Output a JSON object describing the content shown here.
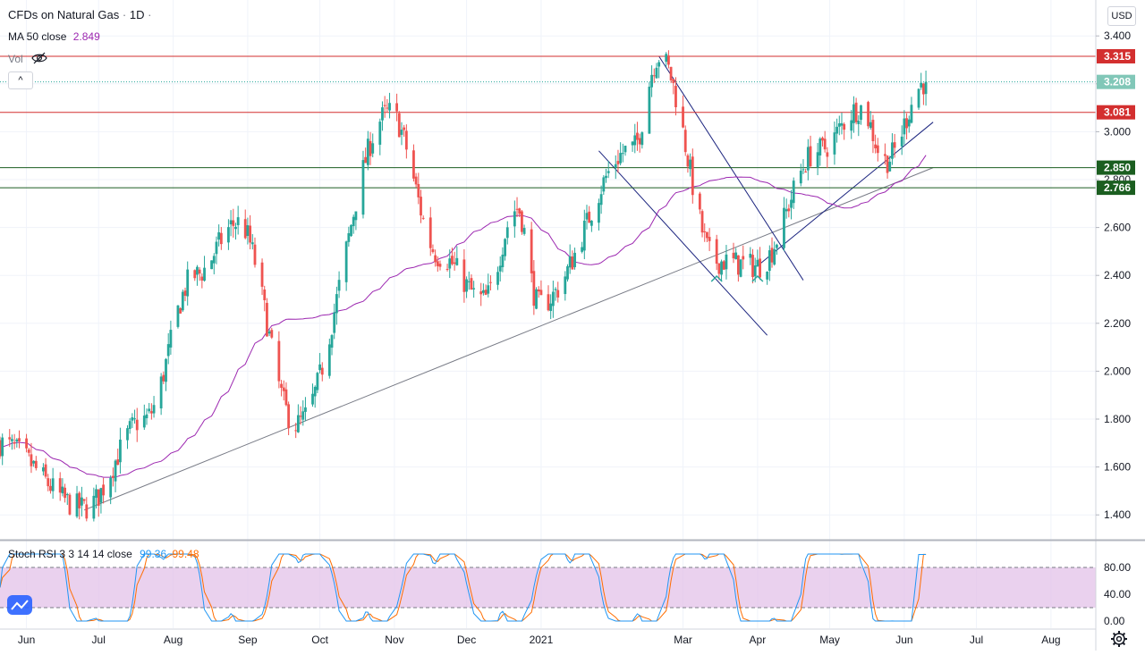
{
  "header": {
    "symbol": "CFDs on Natural Gas",
    "interval": "1D",
    "dot": "·",
    "ma_label": "MA 50 close",
    "ma_value": "2.849",
    "vol_label": "Vol",
    "currency": "USD",
    "collapse_glyph": "^"
  },
  "stoch": {
    "label": "Stoch RSI 3 3 14 14 close",
    "k_value": "99.36",
    "d_value": "99.48",
    "ticks": [
      "80.00",
      "40.00",
      "0.00"
    ],
    "upper": 80,
    "lower": 20
  },
  "colors": {
    "up": "#26a69a",
    "down": "#ef5350",
    "ma": "#9c27b0",
    "k": "#2196f3",
    "d": "#ff6d00",
    "res": "#d32f2f",
    "sup": "#1b5e20",
    "channel": "#1a237e",
    "trend": "#787b86"
  },
  "chart_data": {
    "type": "candlestick",
    "title": "CFDs on Natural Gas · 1D",
    "currency": "USD",
    "y_ticks": [
      "3.400",
      "3.200",
      "3.000",
      "2.800",
      "2.600",
      "2.400",
      "2.200",
      "2.000",
      "1.800",
      "1.600",
      "1.400"
    ],
    "y_range": [
      1.3,
      3.55
    ],
    "x_ticks": [
      "Jun",
      "Jul",
      "Aug",
      "Sep",
      "Oct",
      "Nov",
      "Dec",
      "2021",
      "Mar",
      "Apr",
      "May",
      "Jun",
      "Jul",
      "Aug"
    ],
    "price_labels": [
      {
        "value": 3.315,
        "text": "3.315",
        "kind": "resistance"
      },
      {
        "value": 3.208,
        "text": "3.208",
        "kind": "last"
      },
      {
        "value": 3.081,
        "text": "3.081",
        "kind": "resistance"
      },
      {
        "value": 2.85,
        "text": "2.850",
        "kind": "support"
      },
      {
        "value": 2.766,
        "text": "2.766",
        "kind": "support"
      }
    ],
    "key_points": [
      {
        "date": "2020-05-20",
        "close": 1.7
      },
      {
        "date": "2020-06-25",
        "low": 1.43
      },
      {
        "date": "2020-07-20",
        "close": 1.8
      },
      {
        "date": "2020-08-10",
        "close": 2.4
      },
      {
        "date": "2020-08-28",
        "high": 2.62
      },
      {
        "date": "2020-09-21",
        "low": 1.78
      },
      {
        "date": "2020-10-30",
        "high": 3.08
      },
      {
        "date": "2020-11-20",
        "low": 2.48
      },
      {
        "date": "2020-12-08",
        "low": 2.3
      },
      {
        "date": "2020-12-22",
        "close": 2.68
      },
      {
        "date": "2020-12-31",
        "low": 2.28
      },
      {
        "date": "2021-02-08",
        "close": 2.93
      },
      {
        "date": "2021-02-19",
        "high": 3.315
      },
      {
        "date": "2021-03-15",
        "low": 2.46
      },
      {
        "date": "2021-04-01",
        "low": 2.44
      },
      {
        "date": "2021-04-26",
        "close": 2.92
      },
      {
        "date": "2021-05-14",
        "high": 3.1
      },
      {
        "date": "2021-05-24",
        "close": 2.88
      },
      {
        "date": "2021-06-10",
        "close": 3.208
      }
    ],
    "ma50_last": 2.849,
    "stoch_rsi": {
      "k": 99.36,
      "d": 99.48,
      "bands": [
        20,
        80
      ]
    }
  }
}
